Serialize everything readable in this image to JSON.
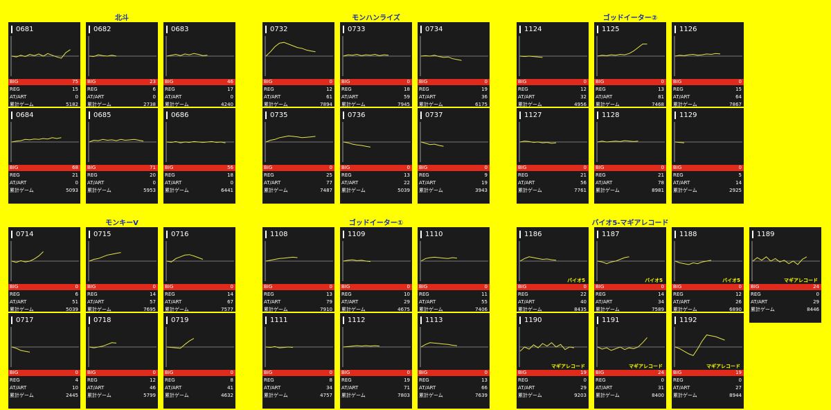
{
  "labels": {
    "big": "BIG",
    "reg": "REG",
    "art": "AT/ART",
    "games": "累計ゲーム"
  },
  "colors": {
    "background": "#ffff00",
    "title": "#1a2ea8",
    "card": "#1b1b1b",
    "big_bar": "#e02a1c",
    "line": "#e8e44a"
  },
  "groups": [
    {
      "title": "北斗",
      "machines": [
        {
          "id": "0681",
          "big": "75",
          "reg": "15",
          "art": "0",
          "games": "5182",
          "tag": "",
          "line": [
            50,
            52,
            48,
            51,
            46,
            49,
            45,
            50,
            44,
            48,
            52,
            55,
            42,
            35
          ]
        },
        {
          "id": "0682",
          "big": "23",
          "reg": "6",
          "art": "0",
          "games": "2738",
          "tag": "",
          "line": [
            50,
            51,
            47,
            49,
            50,
            48,
            50
          ]
        },
        {
          "id": "0683",
          "big": "46",
          "reg": "17",
          "art": "0",
          "games": "4240",
          "tag": "",
          "line": [
            50,
            48,
            46,
            49,
            45,
            47,
            44,
            46,
            49,
            48
          ]
        },
        {
          "id": "0684",
          "big": "68",
          "reg": "21",
          "art": "0",
          "games": "5093",
          "tag": "",
          "line": [
            50,
            48,
            47,
            44,
            45,
            43,
            44,
            42,
            43,
            40,
            42,
            40
          ]
        },
        {
          "id": "0685",
          "big": "71",
          "reg": "20",
          "art": "0",
          "games": "5953",
          "tag": "",
          "line": [
            50,
            46,
            47,
            44,
            46,
            45,
            47,
            44,
            46,
            45,
            44,
            46,
            48
          ]
        },
        {
          "id": "0686",
          "big": "56",
          "reg": "18",
          "art": "0",
          "games": "6441",
          "tag": "",
          "line": [
            50,
            51,
            49,
            52,
            50,
            51,
            49,
            50,
            51,
            50,
            49,
            51,
            50,
            52
          ]
        }
      ]
    },
    {
      "title": "モンハンライズ",
      "machines": [
        {
          "id": "0732",
          "big": "0",
          "reg": "12",
          "art": "61",
          "games": "7894",
          "tag": "",
          "line": [
            50,
            40,
            28,
            20,
            18,
            22,
            26,
            30,
            32,
            36,
            38,
            40
          ]
        },
        {
          "id": "0733",
          "big": "0",
          "reg": "18",
          "art": "59",
          "games": "7945",
          "tag": "",
          "line": [
            50,
            47,
            48,
            46,
            49,
            47,
            48,
            46,
            49,
            47,
            48
          ]
        },
        {
          "id": "0734",
          "big": "0",
          "reg": "19",
          "art": "36",
          "games": "6175",
          "tag": "",
          "line": [
            50,
            49,
            50,
            48,
            51,
            53,
            52,
            56,
            58,
            60
          ]
        },
        {
          "id": "0735",
          "big": "0",
          "reg": "25",
          "art": "77",
          "games": "7487",
          "tag": "",
          "line": [
            50,
            46,
            44,
            40,
            38,
            36,
            37,
            38,
            40,
            39,
            38,
            37
          ]
        },
        {
          "id": "0736",
          "big": "0",
          "reg": "13",
          "art": "22",
          "games": "5039",
          "tag": "",
          "line": [
            50,
            52,
            55,
            57,
            58,
            60,
            62
          ]
        },
        {
          "id": "0737",
          "big": "0",
          "reg": "9",
          "art": "19",
          "games": "3943",
          "tag": "",
          "line": [
            50,
            53,
            56,
            55,
            58,
            60
          ]
        }
      ]
    },
    {
      "title": "ゴッドイーター②",
      "machines": [
        {
          "id": "1124",
          "big": "0",
          "reg": "12",
          "art": "32",
          "games": "4956",
          "tag": "",
          "line": [
            50,
            51,
            50,
            51,
            52,
            53
          ]
        },
        {
          "id": "1125",
          "big": "0",
          "reg": "13",
          "art": "81",
          "games": "7468",
          "tag": "",
          "line": [
            50,
            48,
            49,
            47,
            48,
            46,
            47,
            44,
            38,
            30,
            22,
            22
          ]
        },
        {
          "id": "1126",
          "big": "0",
          "reg": "15",
          "art": "64",
          "games": "7867",
          "tag": "",
          "line": [
            50,
            48,
            49,
            47,
            46,
            48,
            47,
            45,
            46,
            44,
            45
          ]
        },
        {
          "id": "1127",
          "big": "0",
          "reg": "21",
          "art": "56",
          "games": "7761",
          "tag": "",
          "line": [
            50,
            48,
            49,
            51,
            50,
            52,
            51,
            53,
            52
          ]
        },
        {
          "id": "1128",
          "big": "0",
          "reg": "21",
          "art": "78",
          "games": "8981",
          "tag": "",
          "line": [
            50,
            48,
            50,
            49,
            48,
            49,
            47,
            48,
            49,
            48
          ]
        },
        {
          "id": "1129",
          "big": "0",
          "reg": "5",
          "art": "14",
          "games": "2925",
          "tag": "",
          "line": [
            50,
            51,
            52
          ]
        }
      ]
    },
    {
      "title": "モンキーV",
      "machines": [
        {
          "id": "0714",
          "big": "0",
          "reg": "6",
          "art": "51",
          "games": "5039",
          "tag": "",
          "line": [
            50,
            53,
            49,
            52,
            50,
            45,
            38,
            28
          ]
        },
        {
          "id": "0715",
          "big": "0",
          "reg": "14",
          "art": "57",
          "games": "7695",
          "tag": "",
          "line": [
            50,
            46,
            44,
            40,
            36,
            34,
            32,
            30
          ]
        },
        {
          "id": "0716",
          "big": "0",
          "reg": "14",
          "art": "67",
          "games": "7577",
          "tag": "",
          "line": [
            50,
            52,
            44,
            40,
            36,
            35,
            38,
            42,
            46
          ]
        },
        {
          "id": "0717",
          "big": "0",
          "reg": "4",
          "art": "10",
          "games": "2445",
          "tag": "",
          "line": [
            50,
            53,
            58,
            60,
            62
          ]
        },
        {
          "id": "0718",
          "big": "0",
          "reg": "12",
          "art": "46",
          "games": "5799",
          "tag": "",
          "line": [
            50,
            52,
            50,
            48,
            44,
            40,
            41
          ]
        },
        {
          "id": "0719",
          "big": "0",
          "reg": "8",
          "art": "41",
          "games": "4632",
          "tag": "",
          "line": [
            50,
            51,
            52,
            53,
            44,
            36,
            30
          ]
        }
      ]
    },
    {
      "title": "ゴッドイーター①",
      "machines": [
        {
          "id": "1108",
          "big": "0",
          "reg": "13",
          "art": "79",
          "games": "7910",
          "tag": "",
          "line": [
            50,
            48,
            46,
            44,
            43,
            42,
            41,
            42
          ]
        },
        {
          "id": "1109",
          "big": "0",
          "reg": "10",
          "art": "29",
          "games": "4675",
          "tag": "",
          "line": [
            50,
            48,
            47,
            49,
            48,
            50,
            51
          ]
        },
        {
          "id": "1110",
          "big": "0",
          "reg": "11",
          "art": "55",
          "games": "7406",
          "tag": "",
          "line": [
            50,
            44,
            42,
            41,
            42,
            43,
            44,
            42,
            43
          ]
        },
        {
          "id": "1111",
          "big": "0",
          "reg": "8",
          "art": "34",
          "games": "4757",
          "tag": "",
          "line": [
            50,
            51,
            49,
            52,
            51,
            50,
            51
          ]
        },
        {
          "id": "1112",
          "big": "0",
          "reg": "19",
          "art": "71",
          "games": "7803",
          "tag": "",
          "line": [
            50,
            49,
            48,
            47,
            48,
            47,
            48,
            47,
            48
          ]
        },
        {
          "id": "1113",
          "big": "0",
          "reg": "13",
          "art": "66",
          "games": "7639",
          "tag": "",
          "line": [
            50,
            44,
            40,
            41,
            42,
            43,
            44,
            46,
            47
          ]
        }
      ]
    },
    {
      "title": "バイオ5-マギアレコード",
      "machines": [
        {
          "id": "1186",
          "big": "0",
          "reg": "22",
          "art": "40",
          "games": "8435",
          "tag": "バイオ5",
          "line": [
            50,
            44,
            40,
            42,
            44,
            46,
            45,
            47,
            48
          ]
        },
        {
          "id": "1187",
          "big": "0",
          "reg": "14",
          "art": "34",
          "games": "7589",
          "tag": "バイオ5",
          "line": [
            50,
            52,
            56,
            52,
            50,
            46,
            42,
            40
          ]
        },
        {
          "id": "1188",
          "big": "0",
          "reg": "12",
          "art": "26",
          "games": "6890",
          "tag": "バイオ5",
          "line": [
            50,
            54,
            56,
            58,
            54,
            56,
            52,
            50,
            48
          ]
        },
        {
          "id": "1189",
          "big": "24",
          "reg": "0",
          "art": "29",
          "games": "8446",
          "tag": "マギアレコード",
          "line": [
            50,
            42,
            48,
            40,
            50,
            44,
            52,
            48,
            56,
            50,
            58,
            46,
            40
          ]
        },
        {
          "id": "1190",
          "big": "19",
          "reg": "0",
          "art": "29",
          "games": "9203",
          "tag": "マギアレコード",
          "line": [
            60,
            50,
            55,
            45,
            52,
            42,
            48,
            40,
            50,
            44,
            56,
            50,
            52
          ]
        },
        {
          "id": "1191",
          "big": "24",
          "reg": "0",
          "art": "31",
          "games": "8400",
          "tag": "マギアレコード",
          "line": [
            50,
            55,
            52,
            58,
            54,
            50,
            56,
            52,
            54,
            50,
            40,
            28
          ]
        },
        {
          "id": "1192",
          "big": "19",
          "reg": "0",
          "art": "27",
          "games": "8944",
          "tag": "マギアレコード",
          "line": [
            50,
            54,
            60,
            66,
            70,
            54,
            36,
            22,
            24,
            26,
            30,
            34
          ]
        }
      ]
    }
  ]
}
